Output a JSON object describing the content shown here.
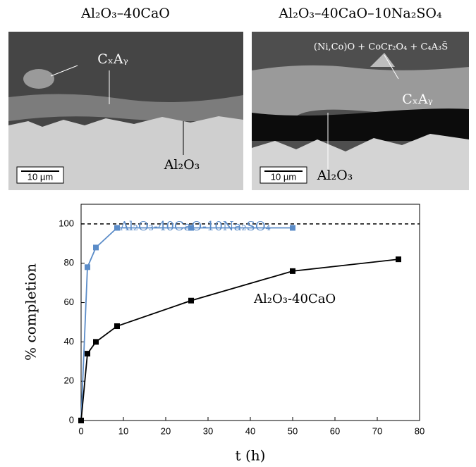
{
  "micrographs": [
    {
      "title": "Al₂O₃–40CaO",
      "labels": [
        "CₓAᵧ",
        "Al₂O₃"
      ],
      "scale_bar": "10 µm"
    },
    {
      "title": "Al₂O₃–40CaO–10Na₂SO₄",
      "labels": [
        "(Ni,Co)O + CoCr₂O₄ + C₄A₃S̄",
        "CₓAᵧ",
        "Al₂O₃"
      ],
      "scale_bar": "10 µm"
    }
  ],
  "chart_data": {
    "type": "line",
    "x_label": "t (h)",
    "y_label": "% completion",
    "xlim": [
      0,
      80
    ],
    "xticks": [
      0,
      10,
      20,
      30,
      40,
      50,
      60,
      70,
      80
    ],
    "ylim": [
      0,
      110
    ],
    "yticks": [
      0,
      20,
      40,
      60,
      80,
      100
    ],
    "reference_line": 100,
    "series": [
      {
        "name": "Al₂O₃-40CaO-10Na₂SO₄",
        "color": "#5b8cc8",
        "x": [
          0,
          1.5,
          3.5,
          8.5,
          26,
          50
        ],
        "values": [
          0,
          78,
          88,
          98,
          98,
          98
        ]
      },
      {
        "name": "Al₂O₃-40CaO",
        "color": "#000000",
        "x": [
          0,
          1.5,
          3.5,
          8.5,
          26,
          50,
          75
        ],
        "values": [
          0,
          34,
          40,
          48,
          61,
          76,
          82
        ]
      }
    ]
  }
}
